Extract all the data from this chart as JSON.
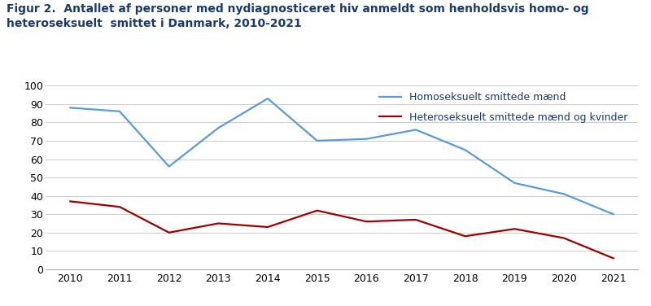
{
  "years": [
    2010,
    2011,
    2012,
    2013,
    2014,
    2015,
    2016,
    2017,
    2018,
    2019,
    2020,
    2021
  ],
  "homo_values": [
    88,
    86,
    56,
    77,
    93,
    70,
    71,
    76,
    65,
    47,
    41,
    30
  ],
  "hetero_values": [
    37,
    34,
    20,
    25,
    23,
    32,
    26,
    27,
    18,
    22,
    17,
    6
  ],
  "homo_color": "#5b9bd5",
  "hetero_color": "#9b0000",
  "homo_label": "Homoseksuelt smittede mænd",
  "hetero_label": "Heteroseksuelt smittede mænd og kvinder",
  "title_line1": "Figur 2.  Antallet af personer med nydiagnosticeret hiv anmeldt som henholdsvis homo- og",
  "title_line2": "heteroseksuelt  smittet i Danmark, 2010-2021",
  "ylim": [
    0,
    100
  ],
  "yticks": [
    0,
    10,
    20,
    30,
    40,
    50,
    60,
    70,
    80,
    90,
    100
  ],
  "xticks": [
    2010,
    2011,
    2012,
    2013,
    2014,
    2015,
    2016,
    2017,
    2018,
    2019,
    2020,
    2021
  ],
  "title_fontsize": 10.0,
  "legend_fontsize": 9,
  "axis_fontsize": 9,
  "line_width": 1.6,
  "background_color": "#ffffff",
  "title_color": "#1a3a6b"
}
